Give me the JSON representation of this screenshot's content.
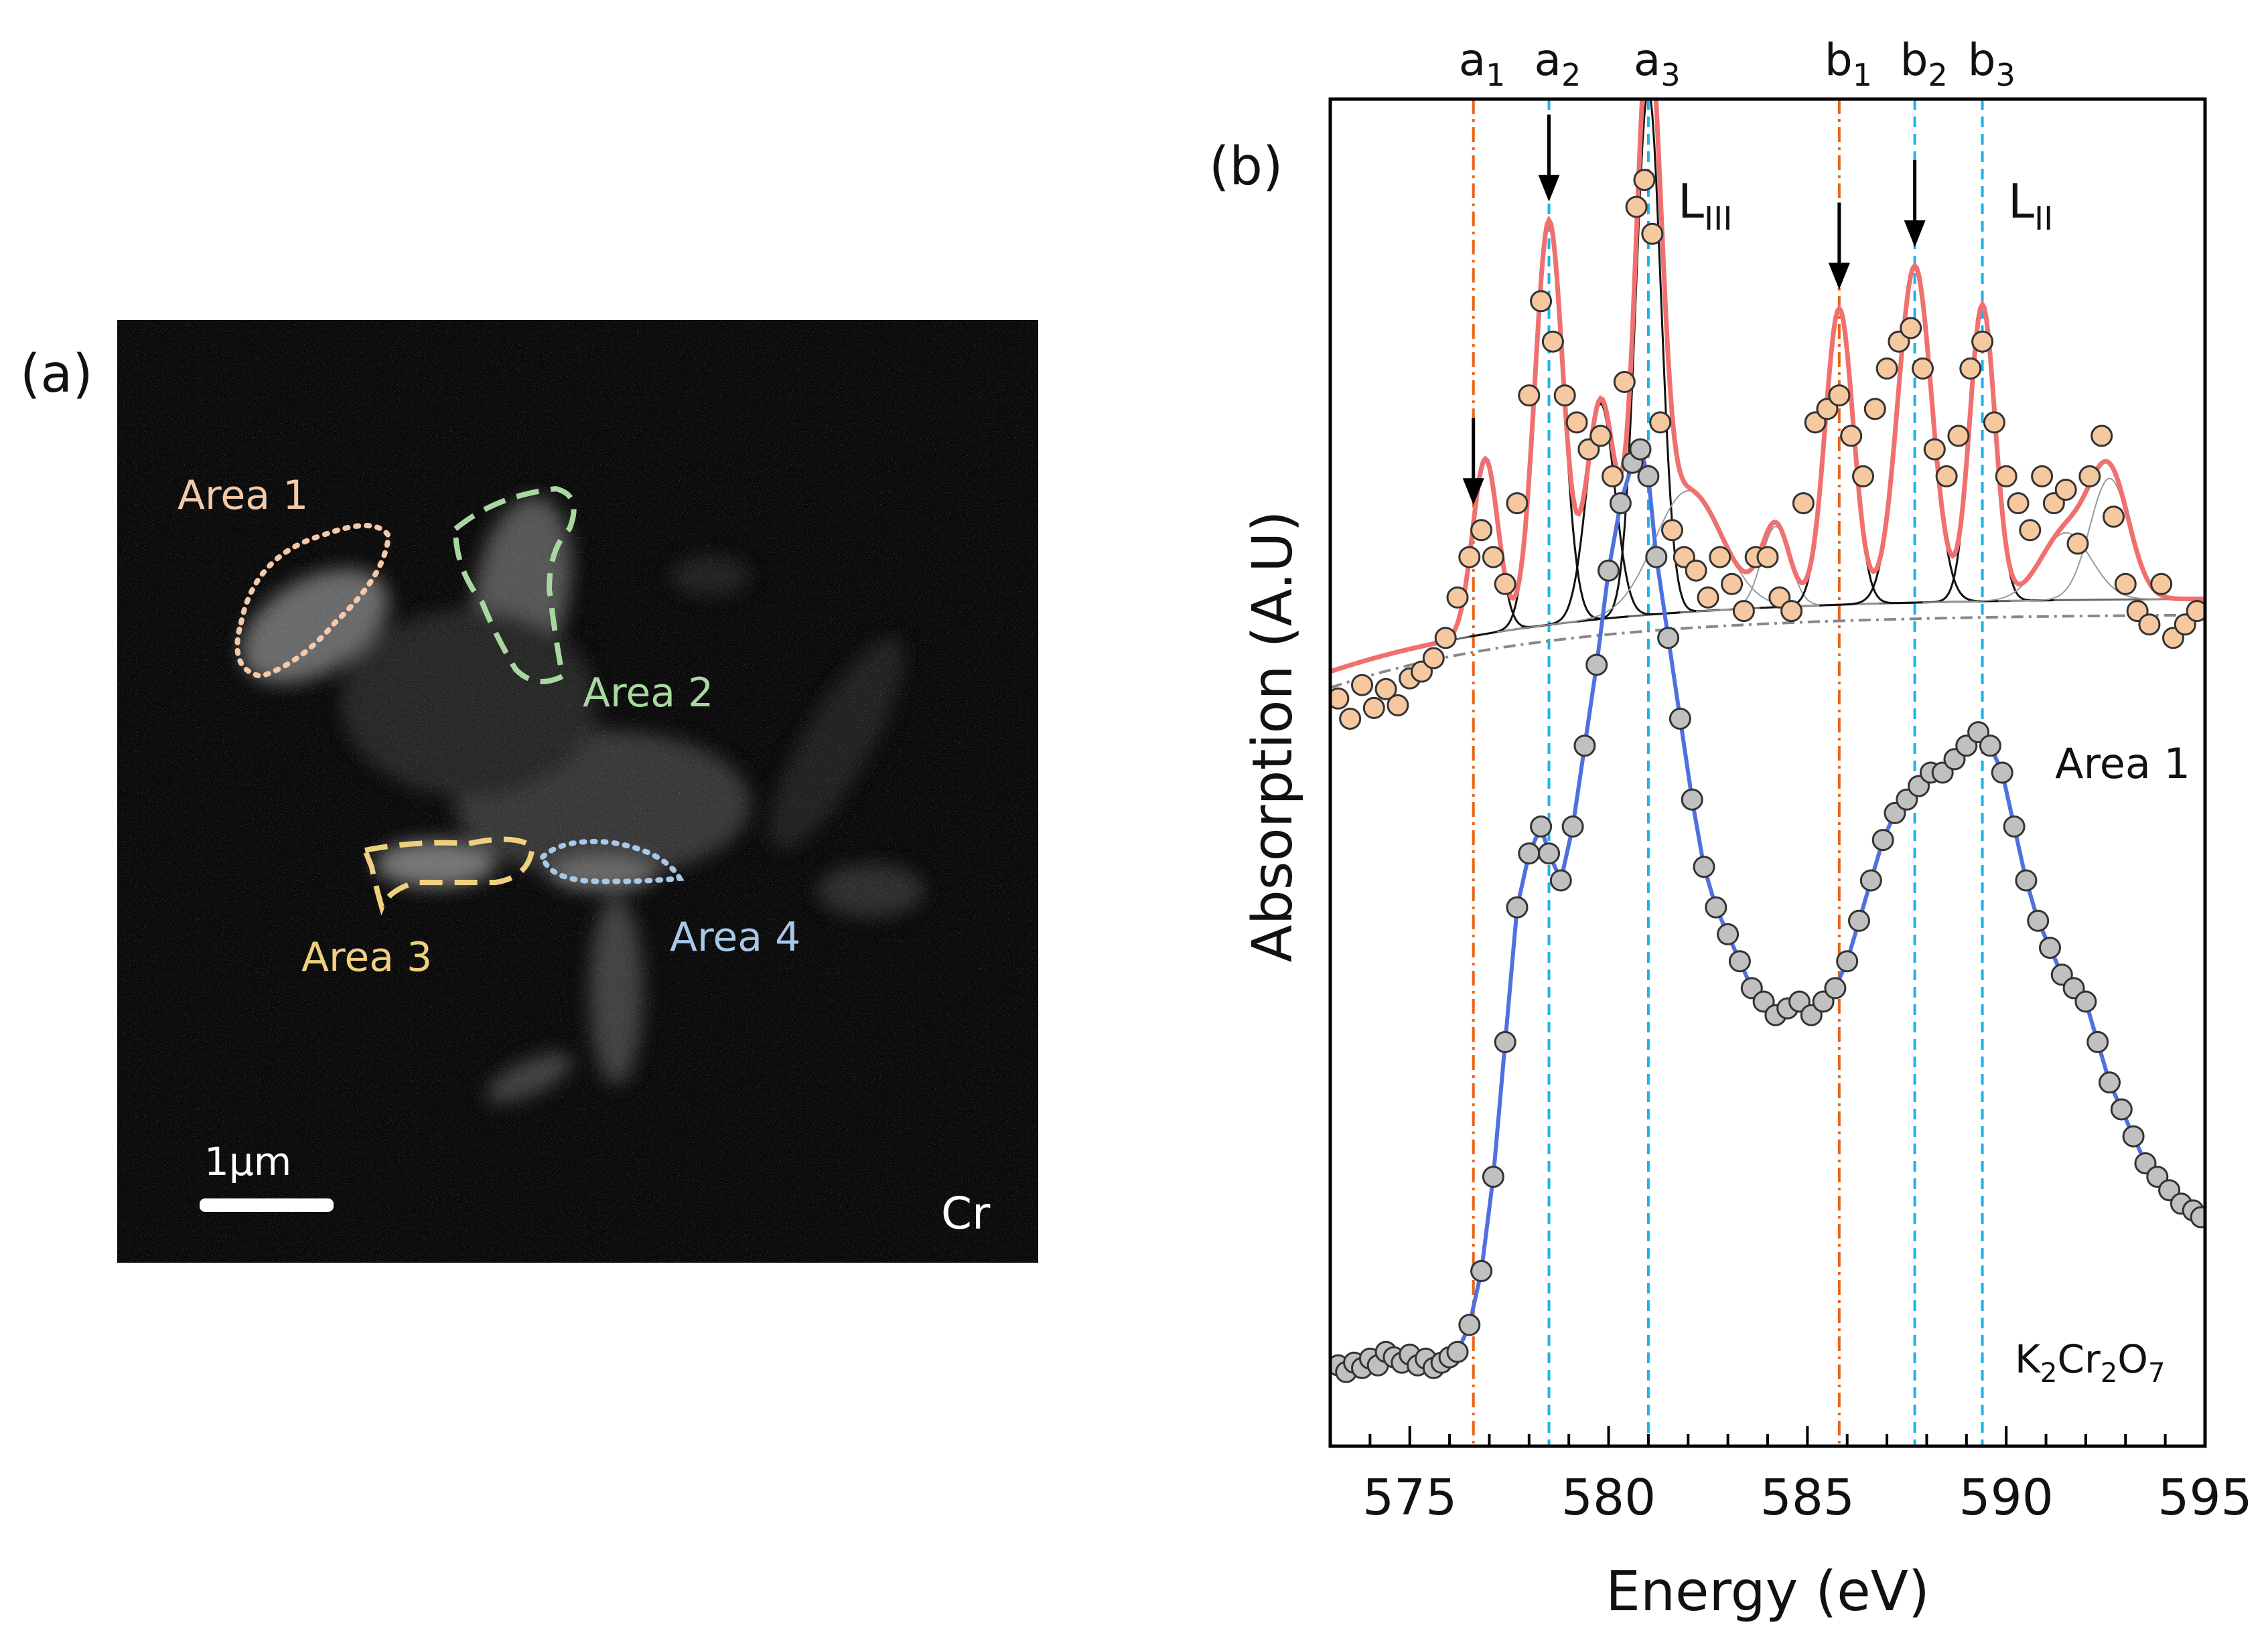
{
  "panel_a": {
    "label": "(a)",
    "element": "Cr",
    "scale_bar": "1μm",
    "areas": [
      {
        "label": "Area 1",
        "color": "#f5c8a8"
      },
      {
        "label": "Area 2",
        "color": "#a8d8a0"
      },
      {
        "label": "Area 3",
        "color": "#f0d080"
      },
      {
        "label": "Area 4",
        "color": "#a8c8e8"
      }
    ]
  },
  "panel_b": {
    "label": "(b)",
    "edge_labels": [
      {
        "main": "L",
        "sub": "III"
      },
      {
        "main": "L",
        "sub": "II"
      }
    ],
    "marker_labels": [
      {
        "main": "a",
        "sub": "1",
        "energy": 576.6,
        "style": "dashdot",
        "color": "#e8651a"
      },
      {
        "main": "a",
        "sub": "2",
        "energy": 578.5,
        "style": "dashed",
        "color": "#1ab4e8"
      },
      {
        "main": "a",
        "sub": "3",
        "energy": 581.0,
        "style": "dashed",
        "color": "#1ab4e8"
      },
      {
        "main": "b",
        "sub": "1",
        "energy": 585.8,
        "style": "dashdot",
        "color": "#e8651a"
      },
      {
        "main": "b",
        "sub": "2",
        "energy": 587.7,
        "style": "dashed",
        "color": "#1ab4e8"
      },
      {
        "main": "b",
        "sub": "3",
        "energy": 589.4,
        "style": "dashed",
        "color": "#1ab4e8"
      }
    ],
    "series_label_top": "Area 1",
    "series_label_bottom": {
      "parts": [
        "K",
        "2",
        "Cr",
        "2",
        "O",
        "7"
      ]
    }
  },
  "chart_data": {
    "type": "scatter",
    "title": "",
    "xlabel": "Energy (eV)",
    "ylabel": "Absorption (A.U)",
    "xlim": [
      573,
      595
    ],
    "ylim": [
      0,
      1
    ],
    "xticks": [
      575,
      580,
      585,
      590,
      595
    ],
    "arrows_at_energy": [
      576.6,
      578.5,
      585.8,
      587.7
    ],
    "series": [
      {
        "name": "Area 1",
        "marker_color": "#f6c8a0",
        "fit_color": "#f07070",
        "x": [
          573.2,
          573.5,
          573.8,
          574.1,
          574.4,
          574.7,
          575.0,
          575.3,
          575.6,
          575.9,
          576.2,
          576.5,
          576.8,
          577.1,
          577.4,
          577.7,
          578.0,
          578.3,
          578.6,
          578.9,
          579.2,
          579.5,
          579.8,
          580.1,
          580.4,
          580.7,
          580.9,
          581.1,
          581.3,
          581.6,
          581.9,
          582.2,
          582.5,
          582.8,
          583.1,
          583.4,
          583.7,
          584.0,
          584.3,
          584.6,
          584.9,
          585.2,
          585.5,
          585.8,
          586.1,
          586.4,
          586.7,
          587.0,
          587.3,
          587.6,
          587.9,
          588.2,
          588.5,
          588.8,
          589.1,
          589.4,
          589.7,
          590.0,
          590.3,
          590.6,
          590.9,
          591.2,
          591.5,
          591.8,
          592.1,
          592.4,
          592.7,
          593.0,
          593.3,
          593.6,
          593.9,
          594.2,
          594.5,
          594.8
        ],
        "y": [
          0.555,
          0.54,
          0.565,
          0.548,
          0.562,
          0.55,
          0.57,
          0.575,
          0.585,
          0.6,
          0.63,
          0.66,
          0.68,
          0.66,
          0.64,
          0.7,
          0.78,
          0.85,
          0.82,
          0.78,
          0.76,
          0.74,
          0.75,
          0.72,
          0.79,
          0.92,
          0.94,
          0.9,
          0.76,
          0.68,
          0.66,
          0.65,
          0.63,
          0.66,
          0.64,
          0.62,
          0.66,
          0.66,
          0.63,
          0.62,
          0.7,
          0.76,
          0.77,
          0.78,
          0.75,
          0.72,
          0.77,
          0.8,
          0.82,
          0.83,
          0.8,
          0.74,
          0.72,
          0.75,
          0.8,
          0.82,
          0.76,
          0.72,
          0.7,
          0.68,
          0.72,
          0.7,
          0.71,
          0.67,
          0.72,
          0.75,
          0.69,
          0.64,
          0.62,
          0.61,
          0.64,
          0.6,
          0.61,
          0.62
        ]
      },
      {
        "name": "K2Cr2O7",
        "marker_color": "#c0c0c0",
        "fit_color": "#5070e0",
        "x": [
          573.2,
          573.4,
          573.6,
          573.8,
          574.0,
          574.2,
          574.4,
          574.6,
          574.8,
          575.0,
          575.2,
          575.4,
          575.6,
          575.8,
          576.0,
          576.2,
          576.5,
          576.8,
          577.1,
          577.4,
          577.7,
          578.0,
          578.3,
          578.5,
          578.8,
          579.1,
          579.4,
          579.7,
          580.0,
          580.3,
          580.6,
          580.8,
          581.0,
          581.2,
          581.5,
          581.8,
          582.1,
          582.4,
          582.7,
          583.0,
          583.3,
          583.6,
          583.9,
          584.2,
          584.5,
          584.8,
          585.1,
          585.4,
          585.7,
          586.0,
          586.3,
          586.6,
          586.9,
          587.2,
          587.5,
          587.8,
          588.1,
          588.4,
          588.7,
          589.0,
          589.3,
          589.6,
          589.9,
          590.2,
          590.5,
          590.8,
          591.1,
          591.4,
          591.7,
          592.0,
          592.3,
          592.6,
          592.9,
          593.2,
          593.5,
          593.8,
          594.1,
          594.4,
          594.7,
          594.9
        ],
        "y": [
          0.06,
          0.055,
          0.062,
          0.058,
          0.065,
          0.06,
          0.07,
          0.066,
          0.062,
          0.068,
          0.06,
          0.065,
          0.058,
          0.062,
          0.066,
          0.07,
          0.09,
          0.13,
          0.2,
          0.3,
          0.4,
          0.44,
          0.46,
          0.44,
          0.42,
          0.46,
          0.52,
          0.58,
          0.65,
          0.7,
          0.73,
          0.74,
          0.72,
          0.66,
          0.6,
          0.54,
          0.48,
          0.43,
          0.4,
          0.38,
          0.36,
          0.34,
          0.33,
          0.32,
          0.325,
          0.33,
          0.32,
          0.33,
          0.34,
          0.36,
          0.39,
          0.42,
          0.45,
          0.47,
          0.48,
          0.49,
          0.5,
          0.5,
          0.51,
          0.52,
          0.53,
          0.52,
          0.5,
          0.46,
          0.42,
          0.39,
          0.37,
          0.35,
          0.34,
          0.33,
          0.3,
          0.27,
          0.25,
          0.23,
          0.21,
          0.2,
          0.19,
          0.18,
          0.175,
          0.17
        ]
      }
    ],
    "fit_components_area1": [
      {
        "center": 576.9,
        "height": 0.13,
        "width": 0.45
      },
      {
        "center": 578.5,
        "height": 0.3,
        "width": 0.5
      },
      {
        "center": 579.8,
        "height": 0.16,
        "width": 0.5
      },
      {
        "center": 581.0,
        "height": 0.39,
        "width": 0.45
      },
      {
        "center": 582.0,
        "height": 0.09,
        "width": 1.2
      },
      {
        "center": 584.2,
        "height": 0.06,
        "width": 0.5
      },
      {
        "center": 585.8,
        "height": 0.22,
        "width": 0.5
      },
      {
        "center": 587.7,
        "height": 0.25,
        "width": 0.6
      },
      {
        "center": 589.4,
        "height": 0.22,
        "width": 0.45
      },
      {
        "center": 591.5,
        "height": 0.05,
        "width": 0.9
      },
      {
        "center": 592.6,
        "height": 0.09,
        "width": 0.7
      }
    ]
  }
}
